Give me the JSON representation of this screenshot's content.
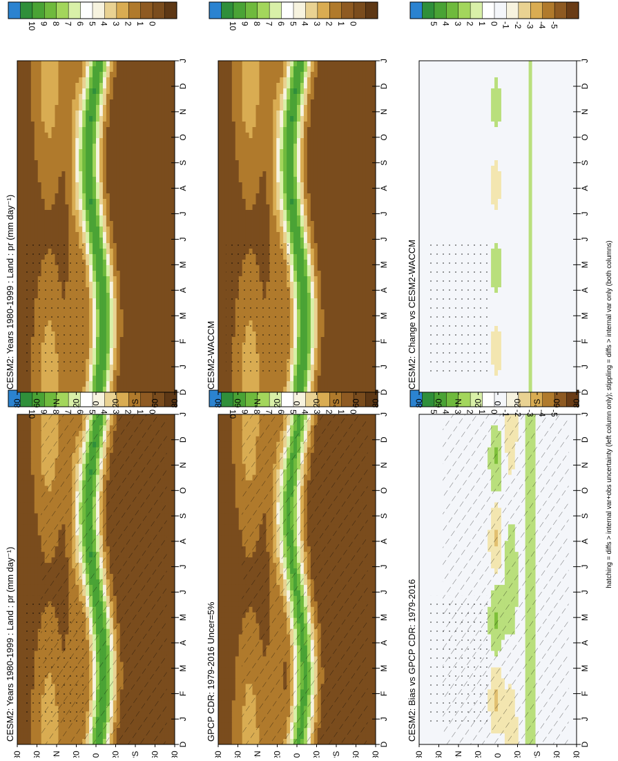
{
  "figure": {
    "footnote": "hatching = diffs > internal var+obs uncertainty (left column only); stippling = diffs > internal var only (both columns)"
  },
  "chart_data": [
    {
      "id": "model-left",
      "type": "heatmap",
      "title": "CESM2: Years 1980-1999 : Land : pr (mm day⁻¹)",
      "x_ticks": [
        "D",
        "J",
        "F",
        "M",
        "A",
        "M",
        "J",
        "J",
        "A",
        "S",
        "O",
        "N",
        "D",
        "J"
      ],
      "y_ticks": [
        "80",
        "60",
        "°N",
        "20",
        "0",
        "20",
        "°S",
        "60",
        "80"
      ],
      "colorbar": {
        "labels": [
          "10",
          "9",
          "8",
          "7",
          "6",
          "5",
          "4",
          "3",
          "2",
          "1",
          "0"
        ]
      },
      "overlay": "hatching+stippling",
      "field": "mean"
    },
    {
      "id": "obs",
      "type": "heatmap",
      "title": "GPCP CDR: 1979-2016 Uncer=5%",
      "x_ticks": [
        "D",
        "J",
        "F",
        "M",
        "A",
        "M",
        "J",
        "J",
        "A",
        "S",
        "O",
        "N",
        "D",
        "J"
      ],
      "y_ticks": [
        "80",
        "60",
        "°N",
        "20",
        "0",
        "20",
        "°S",
        "60",
        "80"
      ],
      "colorbar": {
        "labels": [
          "10",
          "9",
          "8",
          "7",
          "6",
          "5",
          "4",
          "3",
          "2",
          "1",
          "0"
        ]
      },
      "overlay": "hatching",
      "field": "mean"
    },
    {
      "id": "bias",
      "type": "heatmap",
      "title": "CESM2: Bias vs GPCP CDR: 1979-2016",
      "x_ticks": [
        "D",
        "J",
        "F",
        "M",
        "A",
        "M",
        "J",
        "J",
        "A",
        "S",
        "O",
        "N",
        "D",
        "J"
      ],
      "y_ticks": [
        "80",
        "60",
        "°N",
        "20",
        "0",
        "20",
        "°S",
        "60",
        "80"
      ],
      "colorbar": {
        "labels": [
          "5",
          "4",
          "3",
          "2",
          "1",
          "0",
          "-1",
          "-2",
          "-3",
          "-4",
          "-5"
        ]
      },
      "overlay": "hatching+stippling",
      "field": "diff"
    },
    {
      "id": "model-right",
      "type": "heatmap",
      "title": "CESM2: Years 1980-1999 : Land : pr (mm day⁻¹)",
      "x_ticks": [
        "D",
        "J",
        "F",
        "M",
        "A",
        "M",
        "J",
        "J",
        "A",
        "S",
        "O",
        "N",
        "D",
        "J"
      ],
      "y_ticks": [
        "80",
        "60",
        "°N",
        "20",
        "0",
        "20",
        "°S",
        "60",
        "80"
      ],
      "colorbar": {
        "labels": [
          "10",
          "9",
          "8",
          "7",
          "6",
          "5",
          "4",
          "3",
          "2",
          "1",
          "0"
        ]
      },
      "overlay": "stippling",
      "field": "mean"
    },
    {
      "id": "ref",
      "type": "heatmap",
      "title": "CESM2-WACCM",
      "x_ticks": [
        "D",
        "J",
        "F",
        "M",
        "A",
        "M",
        "J",
        "J",
        "A",
        "S",
        "O",
        "N",
        "D",
        "J"
      ],
      "y_ticks": [
        "80",
        "60",
        "°N",
        "20",
        "0",
        "20",
        "°S",
        "60",
        "80"
      ],
      "colorbar": {
        "labels": [
          "10",
          "9",
          "8",
          "7",
          "6",
          "5",
          "4",
          "3",
          "2",
          "1",
          "0"
        ]
      },
      "overlay": "stippling",
      "field": "mean"
    },
    {
      "id": "change",
      "type": "heatmap",
      "title": "CESM2: Change vs CESM2-WACCM",
      "x_ticks": [
        "D",
        "J",
        "F",
        "M",
        "A",
        "M",
        "J",
        "J",
        "A",
        "S",
        "O",
        "N",
        "D",
        "J"
      ],
      "y_ticks": [
        "80",
        "60",
        "°N",
        "20",
        "0",
        "20",
        "°S",
        "60",
        "80"
      ],
      "colorbar": {
        "labels": [
          "5",
          "4",
          "3",
          "2",
          "1",
          "0",
          "-1",
          "-2",
          "-3",
          "-4",
          "-5"
        ]
      },
      "overlay": "stippling",
      "field": "diff_small"
    }
  ],
  "palette": [
    "#2b83d0",
    "#3e9e3e",
    "#5aa832",
    "#7ec03a",
    "#a6d65a",
    "#d2ef9c",
    "#ffffff",
    "#f6ecb8",
    "#e9cc7a",
    "#d7a84d",
    "#b9862f",
    "#8e5a22",
    "#6a3c16"
  ]
}
